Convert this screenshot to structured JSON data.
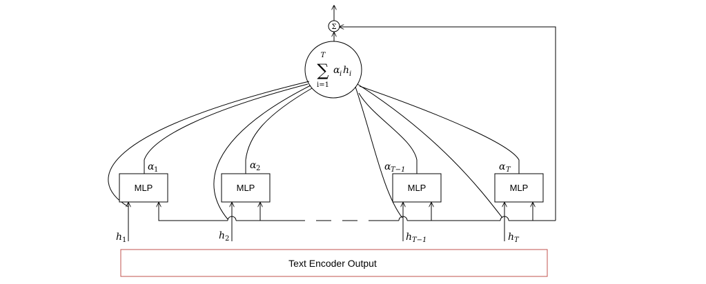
{
  "colors": {
    "encoder_border": "#c0504d",
    "line": "#000000"
  },
  "summation": {
    "symbol": "∑",
    "upper": "T",
    "lower": "i=1",
    "body_alpha": "α",
    "body_alpha_sub": "i",
    "body_h": "h",
    "body_h_sub": "i"
  },
  "small_sum_symbol": "Σ",
  "mlp_blocks": [
    {
      "label": "MLP",
      "alpha": "α",
      "alpha_sub": "1"
    },
    {
      "label": "MLP",
      "alpha": "α",
      "alpha_sub": "2"
    },
    {
      "label": "MLP",
      "alpha": "α",
      "alpha_sub": "T−1"
    },
    {
      "label": "MLP",
      "alpha": "α",
      "alpha_sub": "T"
    }
  ],
  "hidden_states": [
    {
      "symbol": "h",
      "sub": "1"
    },
    {
      "symbol": "h",
      "sub": "2"
    },
    {
      "symbol": "h",
      "sub": "T−1"
    },
    {
      "symbol": "h",
      "sub": "T"
    }
  ],
  "encoder_label": "Text Encoder Output"
}
